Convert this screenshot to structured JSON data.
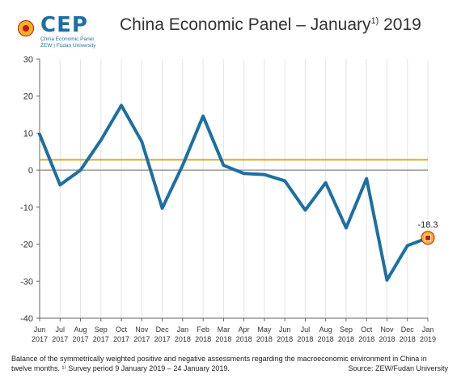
{
  "logo": {
    "word": "CEP",
    "line1": "China Economic Panel",
    "line2": "ZEW | Fudan University",
    "icon": "cep-logo-icon"
  },
  "title": {
    "prefix": "China Economic Panel – January",
    "superscript": "1)",
    "suffix": " 2019"
  },
  "footer": {
    "note": "Balance of the symmetrically weighted positive and negative assessments regarding the macroeconomic environment in China in twelve months. ¹⁾ Survey period 9 January 2019 – 24 January 2019.",
    "source": "Source: ZEW/Fudan University"
  },
  "colors": {
    "series": "#1d6fa3",
    "reference": "#d7a92b",
    "zero": "#999999",
    "marker_outer": "#f2b51c",
    "marker_inner": "#c6142a"
  },
  "chart_data": {
    "type": "line",
    "categories": [
      [
        "Jun",
        "2017"
      ],
      [
        "Jul",
        "2017"
      ],
      [
        "Aug",
        "2017"
      ],
      [
        "Sep",
        "2017"
      ],
      [
        "Oct",
        "2017"
      ],
      [
        "Nov",
        "2017"
      ],
      [
        "Dec",
        "2017"
      ],
      [
        "Jan",
        "2018"
      ],
      [
        "Feb",
        "2018"
      ],
      [
        "Mar",
        "2018"
      ],
      [
        "Apr",
        "2018"
      ],
      [
        "May",
        "2018"
      ],
      [
        "Jun",
        "2018"
      ],
      [
        "Jul",
        "2018"
      ],
      [
        "Aug",
        "2018"
      ],
      [
        "Sep",
        "2018"
      ],
      [
        "Oct",
        "2018"
      ],
      [
        "Nov",
        "2018"
      ],
      [
        "Dec",
        "2018"
      ],
      [
        "Jan",
        "2019"
      ]
    ],
    "values": [
      9.7,
      -4.0,
      0.0,
      8.1,
      17.5,
      7.7,
      -10.3,
      1.3,
      14.6,
      1.3,
      -0.9,
      -1.2,
      -2.9,
      -10.8,
      -3.4,
      -15.6,
      -2.3,
      -29.7,
      -20.4,
      -18.3
    ],
    "reference_line": 2.8,
    "ylim": [
      -40,
      30
    ],
    "yticks": [
      "30",
      "20",
      "10",
      "0",
      "-10",
      "-20",
      "-30",
      "-40"
    ],
    "ytick_values": [
      30,
      20,
      10,
      0,
      -10,
      -20,
      -30,
      -40
    ],
    "last_label": "-18.3",
    "grid": "vertical"
  }
}
